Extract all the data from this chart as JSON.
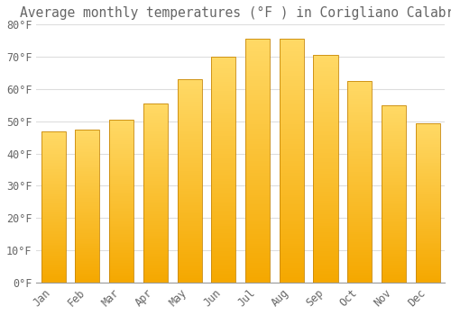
{
  "title": "Average monthly temperatures (°F ) in Corigliano Calabro",
  "months": [
    "Jan",
    "Feb",
    "Mar",
    "Apr",
    "May",
    "Jun",
    "Jul",
    "Aug",
    "Sep",
    "Oct",
    "Nov",
    "Dec"
  ],
  "values": [
    47,
    47.5,
    50.5,
    55.5,
    63,
    70,
    75.5,
    75.5,
    70.5,
    62.5,
    55,
    49.5
  ],
  "bar_color_bottom": "#F5A800",
  "bar_color_top": "#FFD966",
  "bar_edge_color": "#C8880A",
  "background_color": "#FFFFFF",
  "grid_color": "#DDDDDD",
  "text_color": "#666666",
  "ylim": [
    0,
    80
  ],
  "yticks": [
    0,
    10,
    20,
    30,
    40,
    50,
    60,
    70,
    80
  ],
  "ytick_labels": [
    "0°F",
    "10°F",
    "20°F",
    "30°F",
    "40°F",
    "50°F",
    "60°F",
    "70°F",
    "80°F"
  ],
  "title_fontsize": 10.5,
  "tick_fontsize": 8.5
}
